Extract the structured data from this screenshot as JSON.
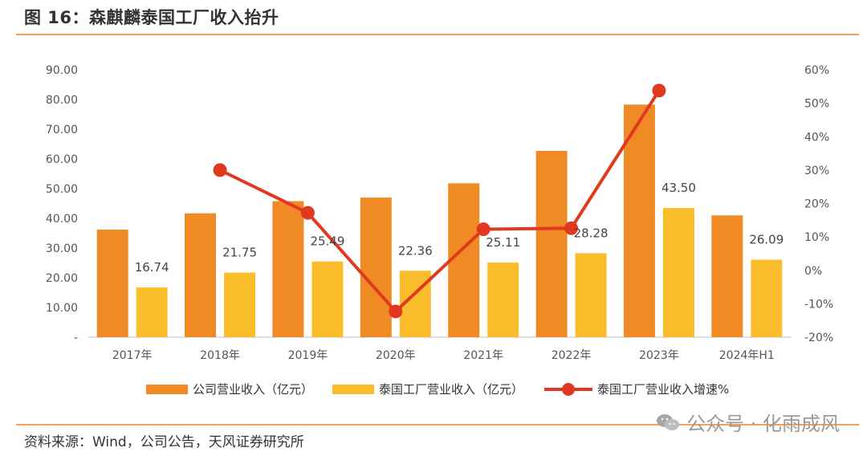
{
  "header": {
    "title": "图 16：森麒麟泰国工厂收入抬升"
  },
  "footer": {
    "source": "资料来源：Wind，公司公告，天风证券研究所",
    "watermark": "公众号 · 化雨成风"
  },
  "colors": {
    "company_bar": "#f08a24",
    "thai_bar": "#fbbd2c",
    "growth_line": "#e0391f",
    "rule": "#f2a15a"
  },
  "chart_data": {
    "type": "bar",
    "categories": [
      "2017年",
      "2018年",
      "2019年",
      "2020年",
      "2021年",
      "2022年",
      "2023年",
      "2024年H1"
    ],
    "series": [
      {
        "name": "公司营业收入（亿元）",
        "type": "bar",
        "axis": "left",
        "values": [
          36.2,
          41.7,
          45.8,
          47.0,
          51.8,
          62.7,
          78.3,
          41.0
        ]
      },
      {
        "name": "泰国工厂营业收入（亿元）",
        "type": "bar",
        "axis": "left",
        "values": [
          16.74,
          21.75,
          25.49,
          22.36,
          25.11,
          28.28,
          43.5,
          26.09
        ],
        "labels": [
          "16.74",
          "21.75",
          "25.49",
          "22.36",
          "25.11",
          "28.28",
          "43.50",
          "26.09"
        ]
      },
      {
        "name": "泰国工厂营业收入增速%",
        "type": "line",
        "axis": "right",
        "values": [
          null,
          30.0,
          17.2,
          -12.3,
          12.3,
          12.6,
          53.8,
          null
        ]
      }
    ],
    "left_axis": {
      "ylim": [
        0,
        90
      ],
      "ticks": [
        0,
        10,
        20,
        30,
        40,
        50,
        60,
        70,
        80,
        90
      ],
      "tick_labels": [
        "-",
        "10.00",
        "20.00",
        "30.00",
        "40.00",
        "50.00",
        "60.00",
        "70.00",
        "80.00",
        "90.00"
      ]
    },
    "right_axis": {
      "ylim": [
        -20,
        60
      ],
      "ticks": [
        -20,
        -10,
        0,
        10,
        20,
        30,
        40,
        50,
        60
      ],
      "tick_labels": [
        "-20%",
        "-10%",
        "0%",
        "10%",
        "20%",
        "30%",
        "40%",
        "50%",
        "60%"
      ]
    },
    "legend_position": "bottom",
    "grid": false
  }
}
